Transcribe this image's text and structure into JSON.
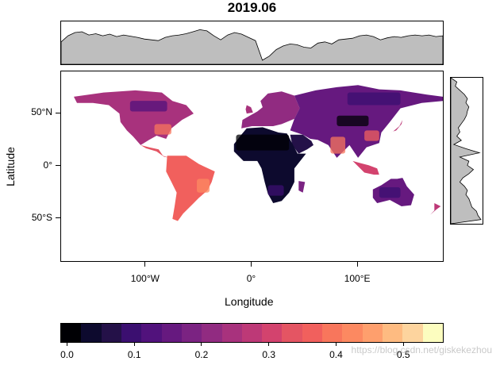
{
  "title": "2019.06",
  "axes": {
    "xlabel": "Longitude",
    "ylabel": "Latitude",
    "x_ticks": [
      {
        "value": -100,
        "label": "100°W"
      },
      {
        "value": 0,
        "label": "0°"
      },
      {
        "value": 100,
        "label": "100°E"
      }
    ],
    "y_ticks": [
      {
        "value": 50,
        "label": "50°N"
      },
      {
        "value": 0,
        "label": "0°"
      },
      {
        "value": -50,
        "label": "50°S"
      }
    ],
    "xlim": [
      -180,
      180
    ],
    "ylim": [
      -90,
      90
    ]
  },
  "colorbar": {
    "colors": [
      "#000004",
      "#0d0a2e",
      "#241148",
      "#3b0f70",
      "#51127c",
      "#66197f",
      "#7b2382",
      "#912b81",
      "#a8327d",
      "#bd3977",
      "#d3436e",
      "#e45563",
      "#f1605d",
      "#f8765c",
      "#fc8961",
      "#fe9f6d",
      "#febb81",
      "#fdd49e",
      "#fcfdbf"
    ],
    "ticks": [
      {
        "value": 0.0,
        "label": "0.0"
      },
      {
        "value": 0.1,
        "label": "0.1"
      },
      {
        "value": 0.2,
        "label": "0.2"
      },
      {
        "value": 0.3,
        "label": "0.3"
      },
      {
        "value": 0.4,
        "label": "0.4"
      },
      {
        "value": 0.5,
        "label": "0.5"
      }
    ],
    "range": [
      -0.01,
      0.56
    ]
  },
  "marginals": {
    "fill": "#bebebe",
    "top_profile": [
      0.55,
      0.7,
      0.78,
      0.8,
      0.72,
      0.75,
      0.7,
      0.74,
      0.68,
      0.72,
      0.69,
      0.66,
      0.62,
      0.6,
      0.58,
      0.66,
      0.7,
      0.72,
      0.75,
      0.8,
      0.85,
      0.82,
      0.7,
      0.6,
      0.72,
      0.78,
      0.74,
      0.66,
      0.58,
      0.1,
      0.2,
      0.36,
      0.45,
      0.5,
      0.48,
      0.42,
      0.4,
      0.52,
      0.55,
      0.5,
      0.6,
      0.62,
      0.64,
      0.7,
      0.72,
      0.68,
      0.6,
      0.65,
      0.68,
      0.66,
      0.7,
      0.72,
      0.7,
      0.72,
      0.68,
      0.7
    ],
    "right_profile": [
      0.0,
      0.2,
      0.15,
      0.3,
      0.45,
      0.55,
      0.5,
      0.6,
      0.55,
      0.52,
      0.45,
      0.35,
      0.25,
      0.3,
      0.2,
      0.35,
      0.1,
      0.5,
      0.95,
      0.3,
      0.6,
      0.55,
      0.75,
      0.6,
      0.4,
      0.3,
      0.45,
      0.55,
      0.5,
      0.6,
      0.65,
      0.7,
      0.85,
      0.9,
      1.0,
      0.0
    ]
  },
  "watermark": "https://blog.csdn.net/giskekezhou"
}
